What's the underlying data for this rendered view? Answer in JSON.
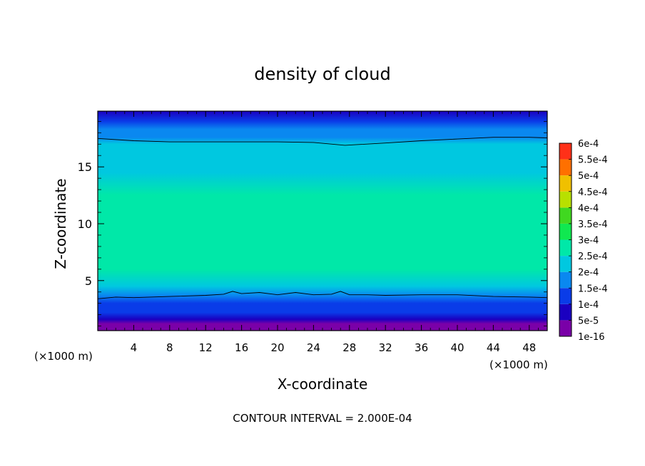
{
  "chart_data": {
    "type": "heatmap",
    "title": "density of cloud",
    "xlabel": "X-coordinate",
    "ylabel": "Z-coordinate",
    "x_unit_left": "(×1000 m)",
    "x_unit_right": "(×1000 m)",
    "footer": "CONTOUR INTERVAL = 2.000E-04",
    "xlim": [
      0,
      50
    ],
    "ylim": [
      0.6,
      19.9
    ],
    "x_ticks": [
      4,
      8,
      12,
      16,
      20,
      24,
      28,
      32,
      36,
      40,
      44,
      48
    ],
    "x_tick_labels": [
      "4",
      "8",
      "12",
      "16",
      "20",
      "24",
      "28",
      "32",
      "36",
      "40",
      "44",
      "48"
    ],
    "y_ticks": [
      5,
      10,
      15
    ],
    "y_tick_labels": [
      "5",
      "10",
      "15"
    ],
    "colorbar": {
      "levels": [
        1e-16,
        5e-05,
        0.0001,
        0.00015,
        0.0002,
        0.00025,
        0.0003,
        0.00035,
        0.0004,
        0.00045,
        0.0005,
        0.00055,
        0.0006
      ],
      "labels": [
        "1e-16",
        "5e-5",
        "1e-4",
        "1.5e-4",
        "2e-4",
        "2.5e-4",
        "3e-4",
        "3.5e-4",
        "4e-4",
        "4.5e-4",
        "5e-4",
        "5.5e-4",
        "6e-4"
      ],
      "colors": [
        "#7a00a8",
        "#1a00c0",
        "#0a3ce8",
        "#0a88f0",
        "#00c8e0",
        "#00e8a8",
        "#10e850",
        "#40d820",
        "#b8e000",
        "#f0c000",
        "#ff7000",
        "#ff3018",
        "#f07878"
      ]
    },
    "profile": {
      "z": [
        0.6,
        1.2,
        1.6,
        2.2,
        3.0,
        3.7,
        4.5,
        6.0,
        8.5,
        10.5,
        12.5,
        14.5,
        16.0,
        17.0,
        17.6,
        18.3,
        19.0,
        19.9
      ],
      "density": [
        6e-06,
        3e-05,
        7e-05,
        0.00011,
        0.000145,
        0.00019,
        0.00023,
        0.000255,
        0.000285,
        0.00029,
        0.000275,
        0.000245,
        0.00023,
        0.000212,
        0.000195,
        0.00016,
        0.000125,
        8e-05
      ]
    },
    "contour_lines": [
      {
        "level": 0.0002,
        "x": [
          0,
          4,
          8,
          12,
          16,
          20,
          24,
          27.5,
          32,
          36,
          40,
          44,
          48,
          50
        ],
        "z": [
          17.5,
          17.3,
          17.2,
          17.2,
          17.2,
          17.2,
          17.15,
          16.9,
          17.1,
          17.3,
          17.45,
          17.6,
          17.6,
          17.55
        ]
      },
      {
        "level": 0.0002,
        "x": [
          0,
          2,
          4,
          8,
          12,
          14,
          15,
          16,
          18,
          20,
          22,
          24,
          26,
          27,
          28,
          30,
          32,
          36,
          40,
          44,
          48,
          50
        ],
        "z": [
          3.4,
          3.55,
          3.5,
          3.6,
          3.7,
          3.8,
          4.05,
          3.85,
          3.95,
          3.75,
          3.95,
          3.75,
          3.8,
          4.05,
          3.75,
          3.75,
          3.7,
          3.75,
          3.75,
          3.6,
          3.55,
          3.5
        ]
      }
    ]
  }
}
